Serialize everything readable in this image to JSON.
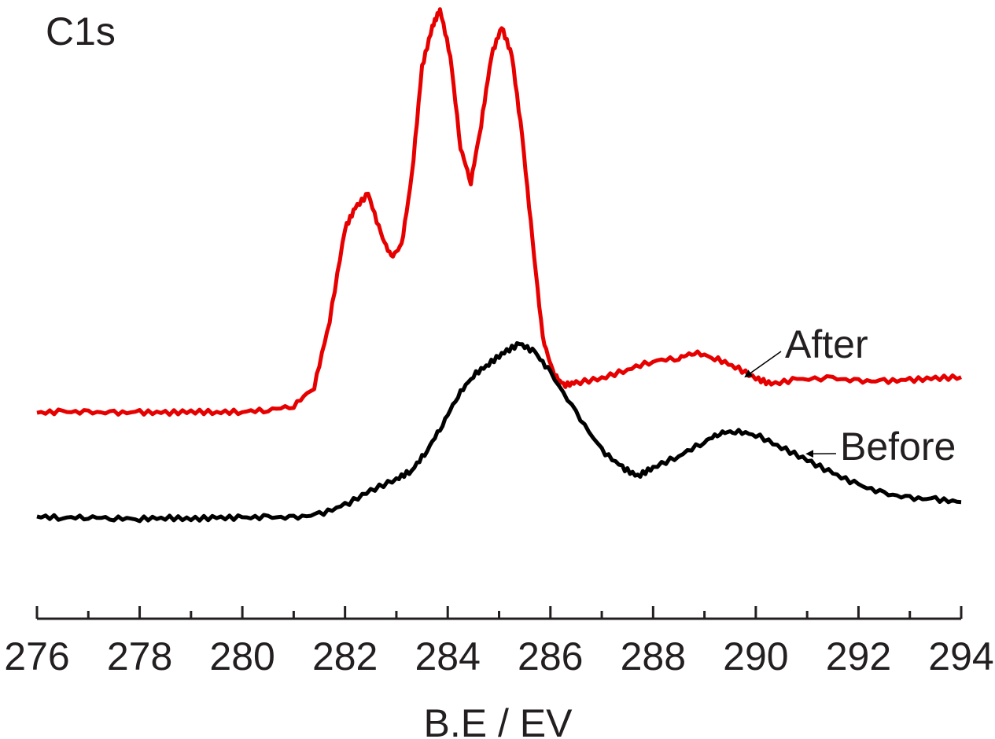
{
  "chart_data": {
    "type": "line",
    "panel_label": "C1s",
    "xlabel": "B.E / EV",
    "ylabel": "",
    "xlim": [
      276,
      294
    ],
    "ylim": [
      0,
      1
    ],
    "x_ticks": [
      "276",
      "278",
      "280",
      "282",
      "284",
      "286",
      "288",
      "290",
      "292",
      "294"
    ],
    "y_axis_shown": false,
    "grid": false,
    "legend": "none",
    "series": [
      {
        "name": "After",
        "color": "#e60000",
        "points": [
          [
            276.0,
            0.3
          ],
          [
            276.5,
            0.302
          ],
          [
            277.0,
            0.301
          ],
          [
            277.5,
            0.3
          ],
          [
            278.0,
            0.301
          ],
          [
            278.5,
            0.3
          ],
          [
            279.0,
            0.302
          ],
          [
            279.5,
            0.301
          ],
          [
            280.0,
            0.302
          ],
          [
            280.5,
            0.305
          ],
          [
            281.0,
            0.312
          ],
          [
            281.4,
            0.345
          ],
          [
            281.7,
            0.46
          ],
          [
            282.0,
            0.62
          ],
          [
            282.2,
            0.656
          ],
          [
            282.45,
            0.68
          ],
          [
            282.7,
            0.61
          ],
          [
            282.9,
            0.57
          ],
          [
            283.1,
            0.59
          ],
          [
            283.3,
            0.71
          ],
          [
            283.5,
            0.9
          ],
          [
            283.7,
            0.97
          ],
          [
            283.85,
            1.0
          ],
          [
            284.05,
            0.92
          ],
          [
            284.25,
            0.76
          ],
          [
            284.45,
            0.7
          ],
          [
            284.65,
            0.8
          ],
          [
            284.85,
            0.92
          ],
          [
            285.05,
            0.97
          ],
          [
            285.25,
            0.92
          ],
          [
            285.45,
            0.78
          ],
          [
            285.65,
            0.6
          ],
          [
            285.85,
            0.43
          ],
          [
            286.05,
            0.37
          ],
          [
            286.25,
            0.348
          ],
          [
            286.5,
            0.352
          ],
          [
            287.0,
            0.36
          ],
          [
            287.5,
            0.375
          ],
          [
            288.0,
            0.39
          ],
          [
            288.5,
            0.395
          ],
          [
            288.8,
            0.405
          ],
          [
            289.2,
            0.395
          ],
          [
            289.6,
            0.38
          ],
          [
            290.0,
            0.36
          ],
          [
            290.3,
            0.35
          ],
          [
            290.8,
            0.358
          ],
          [
            291.5,
            0.36
          ],
          [
            292.0,
            0.355
          ],
          [
            292.5,
            0.355
          ],
          [
            293.0,
            0.357
          ],
          [
            293.5,
            0.36
          ],
          [
            294.0,
            0.362
          ]
        ]
      },
      {
        "name": "Before",
        "color": "#000000",
        "points": [
          [
            276.0,
            0.12
          ],
          [
            276.5,
            0.118
          ],
          [
            277.0,
            0.119
          ],
          [
            277.5,
            0.117
          ],
          [
            278.0,
            0.116
          ],
          [
            278.5,
            0.118
          ],
          [
            279.0,
            0.116
          ],
          [
            279.5,
            0.118
          ],
          [
            280.0,
            0.118
          ],
          [
            280.5,
            0.119
          ],
          [
            281.0,
            0.118
          ],
          [
            281.5,
            0.124
          ],
          [
            282.0,
            0.14
          ],
          [
            282.5,
            0.165
          ],
          [
            283.0,
            0.185
          ],
          [
            283.3,
            0.2
          ],
          [
            283.6,
            0.235
          ],
          [
            283.9,
            0.28
          ],
          [
            284.2,
            0.33
          ],
          [
            284.5,
            0.365
          ],
          [
            284.8,
            0.385
          ],
          [
            285.1,
            0.405
          ],
          [
            285.4,
            0.42
          ],
          [
            285.7,
            0.405
          ],
          [
            286.0,
            0.37
          ],
          [
            286.5,
            0.3
          ],
          [
            287.0,
            0.235
          ],
          [
            287.4,
            0.205
          ],
          [
            287.7,
            0.19
          ],
          [
            288.0,
            0.205
          ],
          [
            288.5,
            0.225
          ],
          [
            289.0,
            0.25
          ],
          [
            289.3,
            0.265
          ],
          [
            289.6,
            0.268
          ],
          [
            290.0,
            0.262
          ],
          [
            290.5,
            0.24
          ],
          [
            291.0,
            0.218
          ],
          [
            291.5,
            0.195
          ],
          [
            292.0,
            0.175
          ],
          [
            292.5,
            0.16
          ],
          [
            293.0,
            0.152
          ],
          [
            293.5,
            0.15
          ],
          [
            294.0,
            0.145
          ]
        ]
      }
    ],
    "annotations": [
      {
        "text": "After",
        "series": "After",
        "arrow_to": [
          289.8,
          0.352
        ]
      },
      {
        "text": "Before",
        "series": "Before",
        "arrow_to": [
          291.0,
          0.218
        ]
      }
    ]
  }
}
